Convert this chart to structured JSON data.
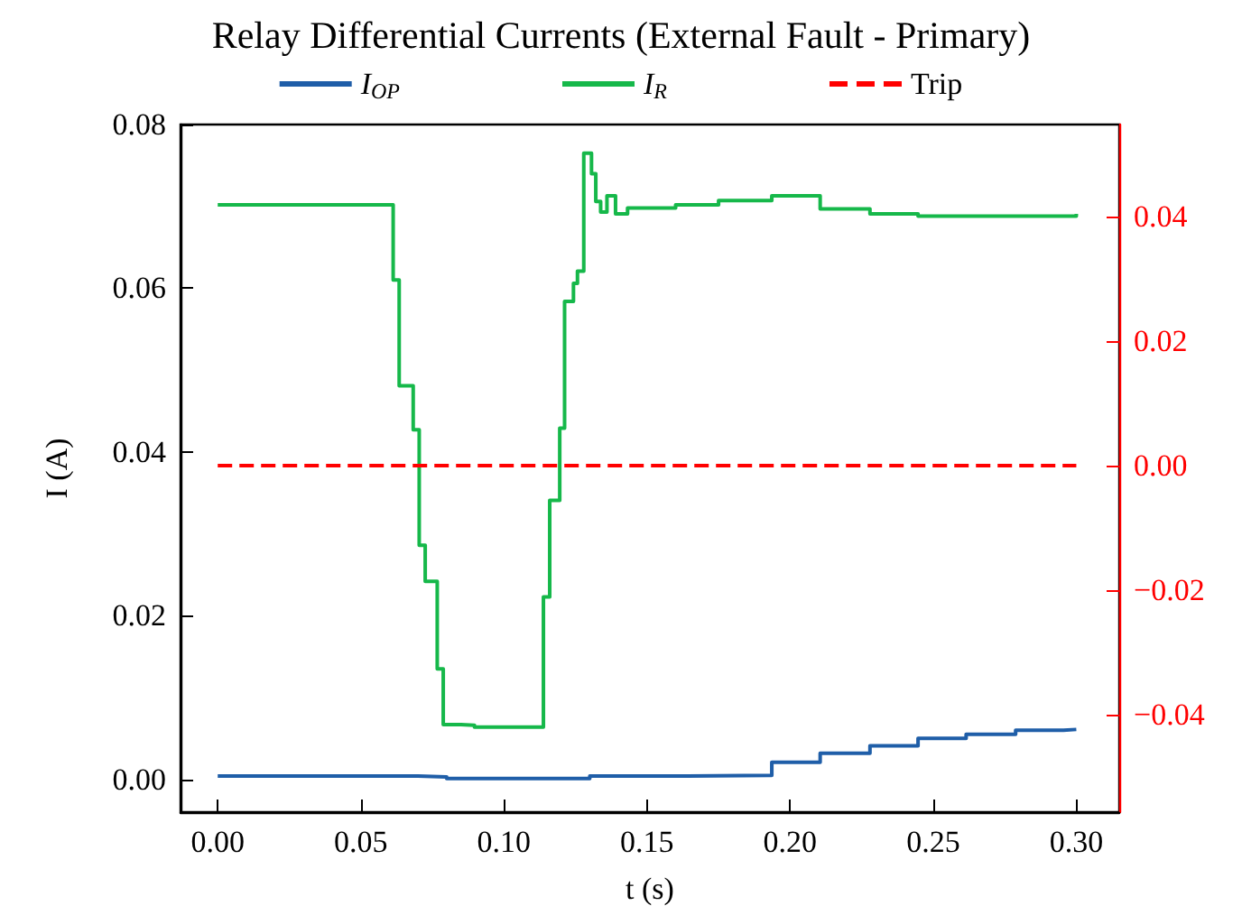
{
  "chart_data": {
    "type": "step",
    "title": "Relay Differential Currents (External Fault - Primary)",
    "xlabel": "t (s)",
    "ylabel": "I (A)",
    "legend": "top",
    "grid": false,
    "xlim": [
      -0.013,
      0.315
    ],
    "ylim": [
      -0.004,
      0.08
    ],
    "y2lim": [
      -0.0557,
      0.0548
    ],
    "xticks": [
      {
        "value": 0,
        "label": "0.00"
      },
      {
        "value": 0.05,
        "label": "0.05"
      },
      {
        "value": 0.1,
        "label": "0.10"
      },
      {
        "value": 0.15,
        "label": "0.15"
      },
      {
        "value": 0.2,
        "label": "0.20"
      },
      {
        "value": 0.25,
        "label": "0.25"
      },
      {
        "value": 0.3,
        "label": "0.30"
      }
    ],
    "yticks": [
      {
        "value": 0,
        "label": "0.00"
      },
      {
        "value": 0.02,
        "label": "0.02"
      },
      {
        "value": 0.04,
        "label": "0.04"
      },
      {
        "value": 0.06,
        "label": "0.06"
      },
      {
        "value": 0.08,
        "label": "0.08"
      }
    ],
    "y2ticks": [
      {
        "value": -0.04,
        "label": "−0.04"
      },
      {
        "value": -0.02,
        "label": "−0.02"
      },
      {
        "value": 0,
        "label": "0.00"
      },
      {
        "value": 0.02,
        "label": "0.02"
      },
      {
        "value": 0.04,
        "label": "0.04"
      }
    ],
    "series": [
      {
        "name": "I$_{OP}$",
        "color": "#1f5ea8",
        "type": "step",
        "x": [
          0,
          0.07,
          0.08,
          0.11,
          0.13,
          0.16,
          0.1936,
          0.2105,
          0.2279,
          0.2447,
          0.2615,
          0.2788,
          0.2955,
          0.3
        ],
        "values": [
          0.0004,
          0.0003,
          0.0001,
          0.0001,
          0.0004,
          0.0005,
          0.0021,
          0.0032,
          0.0041,
          0.005,
          0.0055,
          0.006,
          0.0061,
          0.0061
        ]
      },
      {
        "name": "I$_{R}$",
        "color": "#16b84a",
        "type": "step",
        "x": [
          0,
          0.0613,
          0.0634,
          0.0683,
          0.0704,
          0.0725,
          0.0767,
          0.0788,
          0.085,
          0.0897,
          0.1138,
          0.116,
          0.1195,
          0.1212,
          0.1243,
          0.1257,
          0.1279,
          0.1306,
          0.1321,
          0.1338,
          0.136,
          0.139,
          0.1432,
          0.16,
          0.175,
          0.1936,
          0.2105,
          0.2279,
          0.2447,
          0.2615,
          0.2788,
          0.3
        ],
        "values": [
          0.0702,
          0.061,
          0.0481,
          0.0427,
          0.0286,
          0.0242,
          0.0135,
          0.0067,
          0.0066,
          0.0064,
          0.0223,
          0.0341,
          0.0429,
          0.0584,
          0.0606,
          0.0621,
          0.0765,
          0.074,
          0.0706,
          0.0693,
          0.0713,
          0.0691,
          0.0698,
          0.0702,
          0.0707,
          0.0713,
          0.0697,
          0.0691,
          0.0688,
          0.0688,
          0.0688,
          0.0691
        ]
      },
      {
        "name": "Trip",
        "color": "#ff0000",
        "type": "line",
        "axis": "y2",
        "line_style": "dashed",
        "x": [
          0,
          0.3
        ],
        "values": [
          0,
          0
        ]
      }
    ]
  }
}
